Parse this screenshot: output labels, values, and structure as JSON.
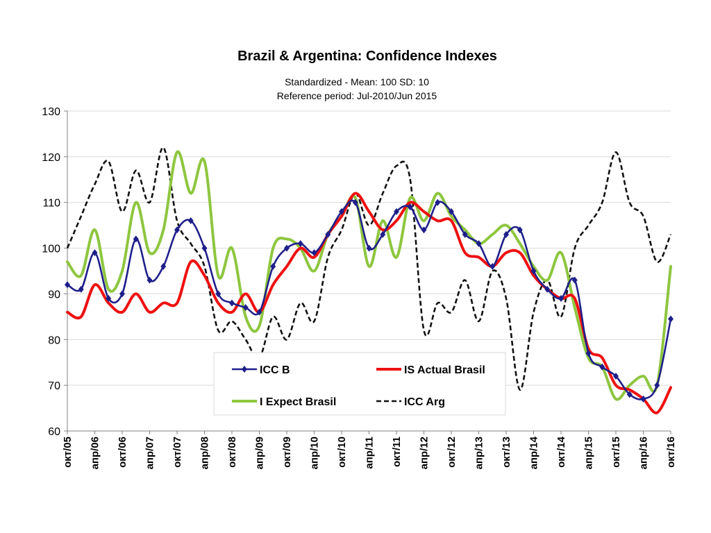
{
  "chart_data": {
    "type": "line",
    "title": "Brazil & Argentina: Confidence Indexes",
    "subtitle_lines": [
      "Standardized - Mean: 100 SD: 10",
      "Reference period: Jul-2010/Jun 2015"
    ],
    "ylim": [
      60,
      130
    ],
    "yticks": [
      60,
      70,
      80,
      90,
      100,
      110,
      120,
      130
    ],
    "grid": true,
    "legend_placement": "bottom-center",
    "x_tick_labels": [
      "окт/05",
      "апр/06",
      "окт/06",
      "апр/07",
      "окт/07",
      "апр/08",
      "окт/08",
      "апр/09",
      "окт/09",
      "апр/10",
      "окт/10",
      "апр/11",
      "окт/11",
      "апр/12",
      "окт/12",
      "апр/13",
      "окт/13",
      "апр/14",
      "окт/14",
      "апр/15",
      "окт/15",
      "апр/16",
      "окт/16"
    ],
    "x_start": "2005-10",
    "x_end": "2016-10",
    "months": [
      "2005-10",
      "2006-01",
      "2006-04",
      "2006-07",
      "2006-10",
      "2007-01",
      "2007-04",
      "2007-07",
      "2007-10",
      "2008-01",
      "2008-04",
      "2008-07",
      "2008-10",
      "2009-01",
      "2009-04",
      "2009-07",
      "2009-10",
      "2010-01",
      "2010-04",
      "2010-07",
      "2010-10",
      "2011-01",
      "2011-04",
      "2011-07",
      "2011-10",
      "2012-01",
      "2012-04",
      "2012-07",
      "2012-10",
      "2013-01",
      "2013-04",
      "2013-07",
      "2013-10",
      "2014-01",
      "2014-04",
      "2014-07",
      "2014-10",
      "2015-01",
      "2015-04",
      "2015-07",
      "2015-10",
      "2016-01",
      "2016-04",
      "2016-07",
      "2016-10"
    ],
    "series": [
      {
        "name": "ICC B",
        "color": "#1f1f8a",
        "style": "solid-diamond",
        "values": [
          92,
          91,
          99,
          89,
          90,
          102,
          93,
          96,
          104,
          106,
          100,
          90,
          88,
          87,
          86,
          96,
          100,
          101,
          99,
          103,
          108,
          110,
          100,
          103,
          108,
          109,
          104,
          110,
          108,
          103,
          101,
          96,
          103,
          104,
          95,
          91,
          89,
          93,
          77,
          74,
          72,
          68,
          67,
          70,
          84.5
        ]
      },
      {
        "name": "IS Actual Brasil",
        "color": "#ee1111",
        "style": "solid",
        "values": [
          86,
          85,
          92,
          88,
          86,
          90,
          86,
          88,
          88,
          97,
          94,
          88,
          86,
          90,
          86,
          92,
          96,
          100,
          98,
          103,
          107,
          112,
          108,
          104,
          106,
          110,
          108,
          106,
          106,
          99,
          98,
          96,
          99,
          99,
          94,
          91,
          89,
          89,
          78,
          76,
          70,
          69,
          67,
          64,
          69.5
        ]
      },
      {
        "name": "I Expect Brasil",
        "color": "#8ec63f",
        "style": "solid",
        "values": [
          97,
          94,
          104,
          91,
          95,
          110,
          99,
          104,
          121,
          112,
          119,
          94,
          100,
          85,
          83,
          100,
          102,
          100,
          95,
          103,
          107,
          111,
          96,
          106,
          98,
          111,
          106,
          112,
          107,
          104,
          101,
          103,
          105,
          101,
          96,
          93,
          99,
          87,
          76,
          74,
          67,
          70,
          72,
          70,
          96
        ]
      },
      {
        "name": "ICC Arg",
        "color": "#111111",
        "style": "dashed",
        "values": [
          100,
          107,
          114,
          119,
          108,
          117,
          110,
          122,
          106,
          101,
          96,
          82,
          84,
          80,
          76,
          85,
          80,
          88,
          84,
          98,
          104,
          112,
          105,
          112,
          118,
          115,
          82,
          88,
          86,
          93,
          84,
          95,
          89,
          69,
          86,
          93,
          85,
          100,
          105,
          110,
          121,
          110,
          107,
          97,
          103
        ]
      }
    ]
  }
}
